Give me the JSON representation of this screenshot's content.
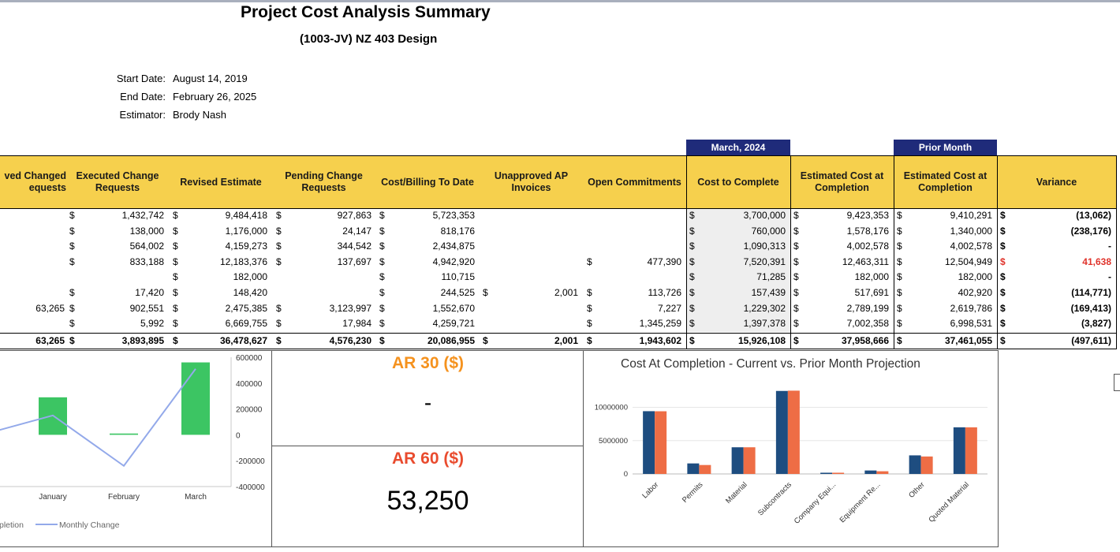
{
  "report": {
    "title": "Project Cost Analysis Summary",
    "subtitle": "(1003-JV) NZ 403 Design",
    "info": [
      {
        "label": "Start Date:",
        "value": "August 14, 2019"
      },
      {
        "label": "End Date:",
        "value": "February 26, 2025"
      },
      {
        "label": "Estimator:",
        "value": "Brody Nash"
      }
    ]
  },
  "period_labels": {
    "current": "March, 2024",
    "prior": "Prior Month"
  },
  "table": {
    "headers": {
      "approved_changed": "ved Changed\nequests",
      "executed": "Executed Change\nRequests",
      "revised": "Revised Estimate",
      "pending": "Pending Change\nRequests",
      "cost_billing": "Cost/Billing To Date",
      "unapproved_ap": "Unapproved AP\nInvoices",
      "open_commitments": "Open Commitments",
      "ctc": "Cost to Complete",
      "est_current": "Estimated Cost at\nCompletion",
      "est_prior": "Estimated Cost at\nCompletion",
      "variance": "Variance"
    },
    "currency": "$",
    "rows": [
      {
        "approved": "",
        "executed": "1,432,742",
        "revised": "9,484,418",
        "pending": "927,863",
        "cost": "5,723,353",
        "unapproved": "",
        "open": "",
        "ctc": "3,700,000",
        "est": "9,423,353",
        "prior": "9,410,291",
        "variance": "(13,062)",
        "variance_red": false
      },
      {
        "approved": "",
        "executed": "138,000",
        "revised": "1,176,000",
        "pending": "24,147",
        "cost": "818,176",
        "unapproved": "",
        "open": "",
        "ctc": "760,000",
        "est": "1,578,176",
        "prior": "1,340,000",
        "variance": "(238,176)",
        "variance_red": false
      },
      {
        "approved": "",
        "executed": "564,002",
        "revised": "4,159,273",
        "pending": "344,542",
        "cost": "2,434,875",
        "unapproved": "",
        "open": "",
        "ctc": "1,090,313",
        "est": "4,002,578",
        "prior": "4,002,578",
        "variance": "-",
        "variance_red": false
      },
      {
        "approved": "",
        "executed": "833,188",
        "revised": "12,183,376",
        "pending": "137,697",
        "cost": "4,942,920",
        "unapproved": "",
        "open": "477,390",
        "ctc": "7,520,391",
        "est": "12,463,311",
        "prior": "12,504,949",
        "variance": "41,638",
        "variance_red": true
      },
      {
        "approved": "",
        "executed": "",
        "revised": "182,000",
        "pending": "",
        "cost": "110,715",
        "unapproved": "",
        "open": "",
        "ctc": "71,285",
        "est": "182,000",
        "prior": "182,000",
        "variance": "-",
        "variance_red": false
      },
      {
        "approved": "",
        "executed": "17,420",
        "revised": "148,420",
        "pending": "",
        "cost": "244,525",
        "unapproved": "2,001",
        "open": "113,726",
        "ctc": "157,439",
        "est": "517,691",
        "prior": "402,920",
        "variance": "(114,771)",
        "variance_red": false
      },
      {
        "approved": "63,265",
        "executed": "902,551",
        "revised": "2,475,385",
        "pending": "3,123,997",
        "cost": "1,552,670",
        "unapproved": "",
        "open": "7,227",
        "ctc": "1,229,302",
        "est": "2,789,199",
        "prior": "2,619,786",
        "variance": "(169,413)",
        "variance_red": false
      },
      {
        "approved": "",
        "executed": "5,992",
        "revised": "6,669,755",
        "pending": "17,984",
        "cost": "4,259,721",
        "unapproved": "",
        "open": "1,345,259",
        "ctc": "1,397,378",
        "est": "7,002,358",
        "prior": "6,998,531",
        "variance": "(3,827)",
        "variance_red": false
      }
    ],
    "totals": {
      "approved": "63,265",
      "executed": "3,893,895",
      "revised": "36,478,627",
      "pending": "4,576,230",
      "cost": "20,086,955",
      "unapproved": "2,001",
      "open": "1,943,602",
      "ctc": "15,926,108",
      "est": "37,958,666",
      "prior": "37,461,055",
      "variance": "(497,611)"
    }
  },
  "ar": {
    "ar30": {
      "title": "AR 30 ($)",
      "value": "-",
      "color": "#f5921e"
    },
    "ar60": {
      "title": "AR 60 ($)",
      "value": "53,250",
      "color": "#e94b2e"
    }
  },
  "chart_data": [
    {
      "type": "bar",
      "title": "",
      "categories": [
        "January",
        "February",
        "March"
      ],
      "y_ticks": [
        "600000",
        "400000",
        "200000",
        "0",
        "-200000",
        "-400000"
      ],
      "ylim": [
        -400000,
        600000
      ],
      "series": [
        {
          "name": "pletion",
          "kind": "bar",
          "values": [
            290000,
            10000,
            560000
          ],
          "color": "#3cc563"
        },
        {
          "name": "Monthly Change",
          "kind": "line",
          "values": [
            150000,
            -240000,
            510000
          ],
          "color": "#93a9ea"
        }
      ],
      "legend": "bottom"
    },
    {
      "type": "bar",
      "title": "Cost At Completion - Current vs. Prior Month Projection",
      "categories": [
        "Labor",
        "Permits",
        "Material",
        "Subcontracts",
        "Company Equi...",
        "Equipment Re...",
        "Other",
        "Quoted Material"
      ],
      "y_ticks": [
        "10000000",
        "5000000",
        "0"
      ],
      "ylim": [
        0,
        13500000
      ],
      "series": [
        {
          "values": [
            9423353,
            1578176,
            4002578,
            12463311,
            182000,
            517691,
            2789199,
            7002358
          ],
          "color": "#1e4d80"
        },
        {
          "values": [
            9410291,
            1340000,
            4002578,
            12504949,
            182000,
            402920,
            2619786,
            6998531
          ],
          "color": "#ee6d45"
        }
      ],
      "grid": true
    }
  ]
}
